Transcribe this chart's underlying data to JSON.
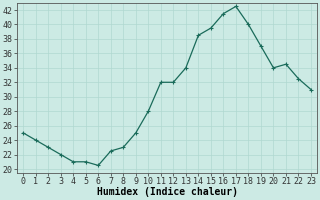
{
  "x": [
    0,
    1,
    2,
    3,
    4,
    5,
    6,
    7,
    8,
    9,
    10,
    11,
    12,
    13,
    14,
    15,
    16,
    17,
    18,
    19,
    20,
    21,
    22,
    23
  ],
  "y": [
    25,
    24,
    23,
    22,
    21,
    21,
    20.5,
    22.5,
    23,
    25,
    28,
    32,
    32,
    34,
    38.5,
    39.5,
    41.5,
    42.5,
    40,
    37,
    34,
    34.5,
    32.5,
    31
  ],
  "line_color": "#1a6b5a",
  "marker": "+",
  "marker_size": 3,
  "linewidth": 0.9,
  "xlabel": "Humidex (Indice chaleur)",
  "xlim": [
    -0.5,
    23.5
  ],
  "ylim": [
    19.5,
    43
  ],
  "yticks": [
    20,
    22,
    24,
    26,
    28,
    30,
    32,
    34,
    36,
    38,
    40,
    42
  ],
  "xticks": [
    0,
    1,
    2,
    3,
    4,
    5,
    6,
    7,
    8,
    9,
    10,
    11,
    12,
    13,
    14,
    15,
    16,
    17,
    18,
    19,
    20,
    21,
    22,
    23
  ],
  "bg_color": "#cceae4",
  "grid_color": "#b0d8d0",
  "xlabel_fontsize": 7,
  "tick_fontsize": 6
}
